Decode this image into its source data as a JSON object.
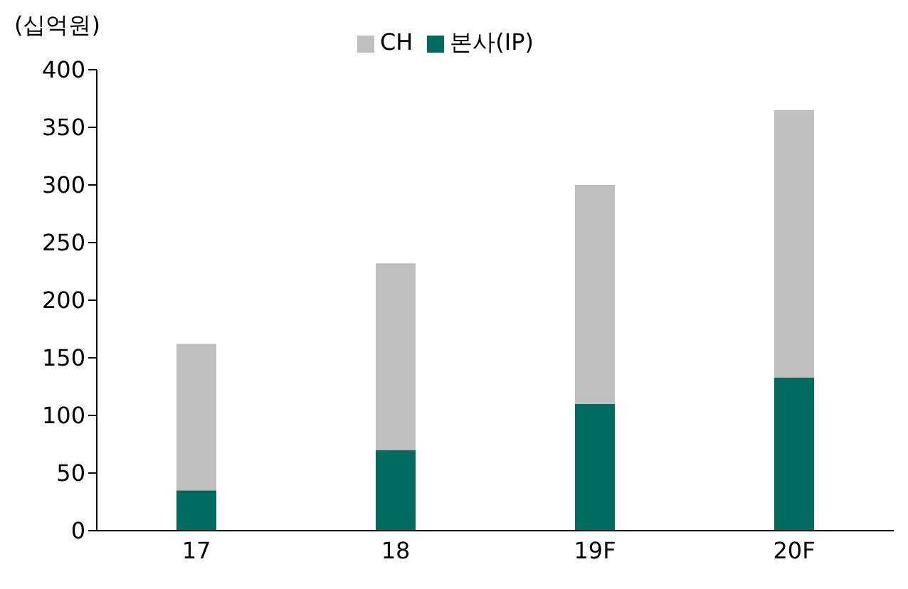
{
  "chart_data": {
    "type": "bar",
    "ylabel": "(십억원)",
    "categories": [
      "17",
      "18",
      "19F",
      "20F"
    ],
    "stacked": true,
    "series": [
      {
        "name": "본사(IP)",
        "color": "#006b5f",
        "values": [
          35,
          70,
          110,
          133
        ]
      },
      {
        "name": "CH",
        "color": "#bfbfbf",
        "values": [
          127,
          162,
          190,
          232
        ]
      }
    ],
    "ylim": [
      0,
      400
    ],
    "yticks": [
      0,
      50,
      100,
      150,
      200,
      250,
      300,
      350,
      400
    ],
    "grid": false,
    "legend": "top"
  }
}
